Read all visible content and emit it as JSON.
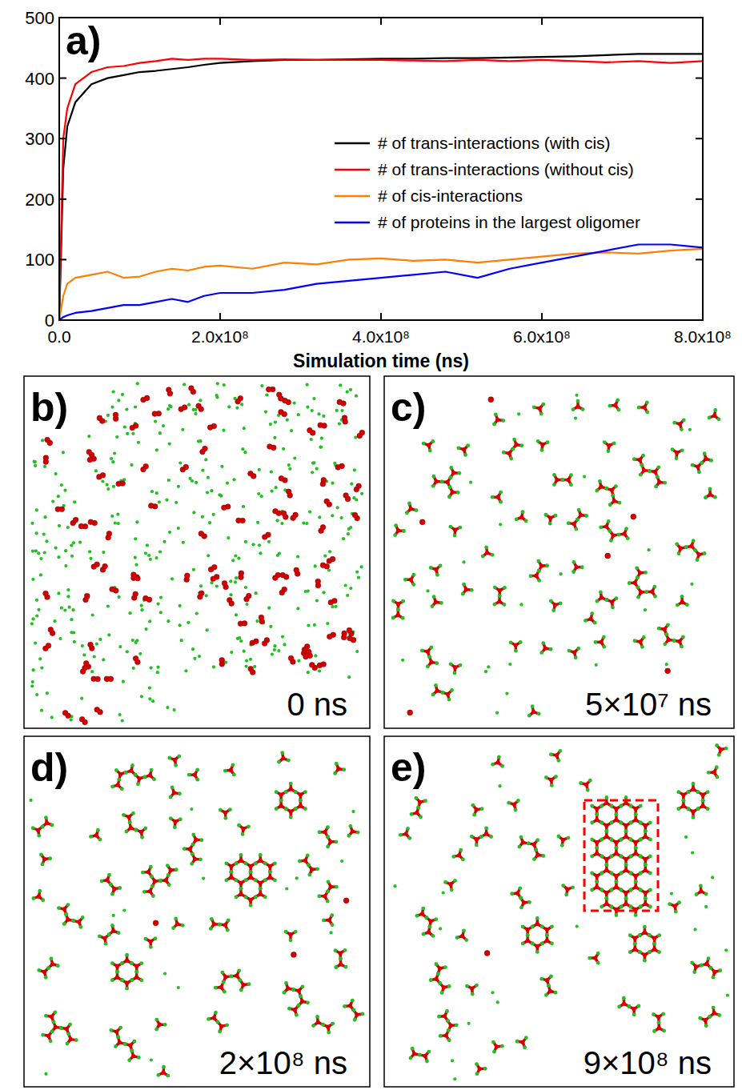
{
  "chart_data": {
    "type": "line",
    "title": "a)",
    "xlabel": "Simulation time (ns)",
    "x": [
      0,
      5000000,
      10000000,
      20000000,
      40000000,
      60000000,
      80000000,
      100000000,
      120000000,
      140000000,
      160000000,
      180000000,
      200000000,
      240000000,
      280000000,
      320000000,
      360000000,
      400000000,
      440000000,
      480000000,
      520000000,
      560000000,
      600000000,
      640000000,
      680000000,
      720000000,
      760000000,
      800000000
    ],
    "series": [
      {
        "name": "# of trans-interactions (with cis)",
        "color": "#000000",
        "values": [
          0,
          250,
          320,
          360,
          390,
          400,
          405,
          410,
          412,
          415,
          418,
          422,
          425,
          428,
          430,
          430,
          431,
          432,
          432,
          433,
          433,
          434,
          435,
          436,
          438,
          440,
          440,
          440
        ]
      },
      {
        "name": "# of trans-interactions (without cis)",
        "color": "#ff0000",
        "values": [
          0,
          300,
          350,
          390,
          410,
          418,
          420,
          425,
          428,
          432,
          430,
          432,
          432,
          430,
          431,
          430,
          430,
          430,
          429,
          428,
          430,
          428,
          430,
          428,
          426,
          428,
          425,
          428
        ]
      },
      {
        "name": "# of cis-interactions",
        "color": "#ff7f00",
        "values": [
          0,
          40,
          60,
          70,
          75,
          80,
          70,
          72,
          80,
          85,
          82,
          88,
          90,
          85,
          95,
          92,
          100,
          102,
          98,
          100,
          95,
          100,
          105,
          110,
          112,
          110,
          115,
          118
        ]
      },
      {
        "name": "# of proteins in the largest oligomer",
        "color": "#0000ff",
        "values": [
          0,
          5,
          8,
          12,
          15,
          20,
          25,
          25,
          30,
          35,
          30,
          40,
          45,
          45,
          50,
          60,
          65,
          70,
          75,
          80,
          70,
          85,
          95,
          105,
          115,
          125,
          125,
          120
        ]
      }
    ],
    "xlim": [
      0,
      800000000
    ],
    "xticks": [
      {
        "value": 0,
        "label": "0.0"
      },
      {
        "value": 200000000,
        "label": "2.0x10⁸"
      },
      {
        "value": 400000000,
        "label": "4.0x10⁸"
      },
      {
        "value": 600000000,
        "label": "6.0x10⁸"
      },
      {
        "value": 800000000,
        "label": "8.0x10⁸"
      }
    ],
    "ylim": [
      0,
      500
    ],
    "yticks": [
      0,
      100,
      200,
      300,
      400,
      500
    ],
    "legend": "right",
    "grid": false
  },
  "snapshots": [
    {
      "label": "b)",
      "time": "0 ns"
    },
    {
      "label": "c)",
      "time": "5×10⁷ ns"
    },
    {
      "label": "d)",
      "time": "2×10⁸ ns"
    },
    {
      "label": "e)",
      "time": "9×10⁸ ns"
    }
  ]
}
